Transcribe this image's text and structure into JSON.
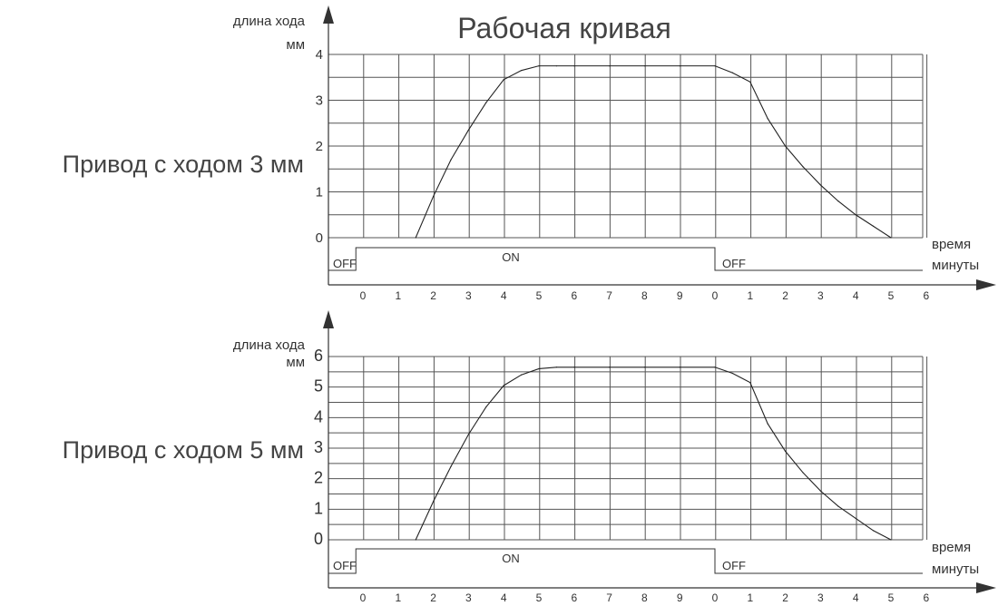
{
  "title": "Рабочая кривая",
  "chart_data": [
    {
      "type": "line",
      "label": "Привод с ходом 3 мм",
      "ylabel_line1": "длина хода",
      "ylabel_line2": "мм",
      "xlabel_line1": "время",
      "xlabel_line2": "минуты",
      "y_ticks": [
        "0",
        "1",
        "2",
        "3",
        "4"
      ],
      "ylim": [
        0,
        4
      ],
      "x_ticks": [
        "0",
        "1",
        "2",
        "3",
        "4",
        "5",
        "6",
        "7",
        "8",
        "9",
        "0",
        "1",
        "2",
        "3",
        "4",
        "5",
        "6"
      ],
      "xlim": [
        0,
        16
      ],
      "series": [
        {
          "x": [
            1.5,
            2,
            2.5,
            3,
            3.5,
            4,
            4.5,
            5,
            5.5,
            6,
            7,
            8,
            9,
            10,
            10.5,
            11,
            11.5,
            12,
            12.5,
            13,
            13.5,
            14,
            14.5,
            15
          ],
          "values": [
            0,
            0.9,
            1.7,
            2.35,
            2.95,
            3.45,
            3.65,
            3.75,
            3.75,
            3.75,
            3.75,
            3.75,
            3.75,
            3.75,
            3.6,
            3.4,
            2.6,
            2.0,
            1.55,
            1.15,
            0.8,
            0.5,
            0.25,
            0
          ]
        }
      ],
      "signal": {
        "off_label": "OFF",
        "on_label": "ON",
        "on_from": -0.2,
        "on_to": 10
      }
    },
    {
      "type": "line",
      "label": "Привод с ходом 5 мм",
      "ylabel_line1": "длина хода",
      "ylabel_line2": "мм",
      "xlabel_line1": "время",
      "xlabel_line2": "минуты",
      "y_ticks": [
        "0",
        "1",
        "2",
        "3",
        "4",
        "5",
        "6"
      ],
      "ylim": [
        0,
        6
      ],
      "x_ticks": [
        "0",
        "1",
        "2",
        "3",
        "4",
        "5",
        "6",
        "7",
        "8",
        "9",
        "0",
        "1",
        "2",
        "3",
        "4",
        "5",
        "6"
      ],
      "xlim": [
        0,
        16
      ],
      "series": [
        {
          "x": [
            1.5,
            2,
            2.5,
            3,
            3.5,
            4,
            4.5,
            5,
            5.5,
            6,
            7,
            8,
            9,
            10,
            10.5,
            11,
            11.5,
            12,
            12.5,
            13,
            13.5,
            14,
            14.5,
            15
          ],
          "values": [
            0,
            1.25,
            2.4,
            3.45,
            4.35,
            5.05,
            5.4,
            5.6,
            5.65,
            5.65,
            5.65,
            5.65,
            5.65,
            5.65,
            5.45,
            5.15,
            3.8,
            2.9,
            2.2,
            1.6,
            1.1,
            0.7,
            0.3,
            0
          ]
        }
      ],
      "signal": {
        "off_label": "OFF",
        "on_label": "ON",
        "on_from": -0.2,
        "on_to": 10
      }
    }
  ]
}
